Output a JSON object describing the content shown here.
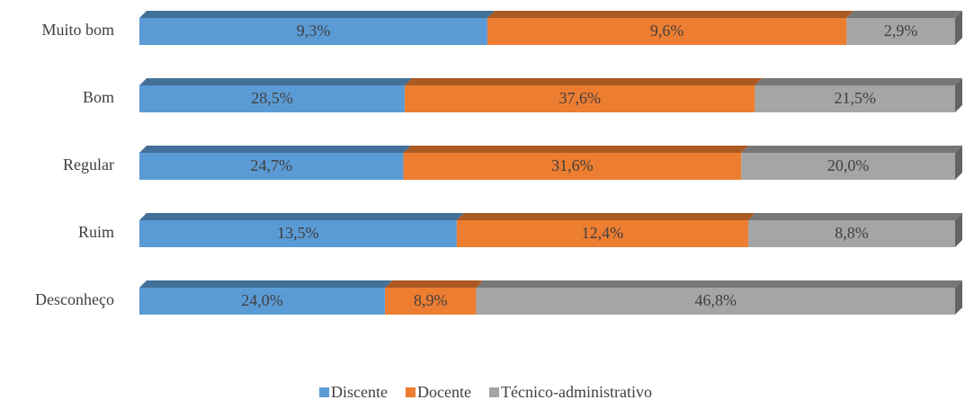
{
  "chart_data": {
    "type": "bar",
    "orientation": "horizontal",
    "stacking": "percent",
    "categories": [
      "Muito bom",
      "Bom",
      "Regular",
      "Ruim",
      "Desconheço"
    ],
    "series": [
      {
        "name": "Discente",
        "color": "#5b9bd5",
        "values": [
          9.3,
          28.5,
          24.7,
          13.5,
          24.0
        ],
        "value_labels": [
          "9,3%",
          "28,5%",
          "24,7%",
          "13,5%",
          "24,0%"
        ]
      },
      {
        "name": "Docente",
        "color": "#ed7d31",
        "values": [
          9.6,
          37.6,
          31.6,
          12.4,
          8.9
        ],
        "value_labels": [
          "9,6%",
          "37,6%",
          "31,6%",
          "12,4%",
          "8,9%"
        ]
      },
      {
        "name": "Técnico-administrativo",
        "color": "#a5a5a5",
        "values": [
          2.9,
          21.5,
          20.0,
          8.8,
          46.8
        ],
        "value_labels": [
          "2,9%",
          "21,5%",
          "20,0%",
          "8,8%",
          "46,8%"
        ]
      }
    ],
    "legend": "bottom"
  }
}
